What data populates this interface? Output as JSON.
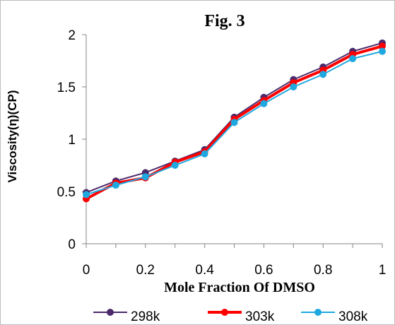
{
  "chart_data": {
    "type": "line",
    "title": "Fig. 3",
    "xlabel": "Mole Fraction Of DMSO",
    "ylabel": "Viscosity(η)(CP)",
    "xlim": [
      0,
      1
    ],
    "ylim": [
      0,
      2
    ],
    "x_ticks": [
      "0",
      "0.2",
      "0.4",
      "0.6",
      "0.8",
      "1"
    ],
    "y_ticks": [
      "0",
      "0.5",
      "1",
      "1.5",
      "2"
    ],
    "grid": false,
    "legend_position": "bottom",
    "x": [
      0,
      0.1,
      0.2,
      0.3,
      0.4,
      0.5,
      0.6,
      0.7,
      0.8,
      0.9,
      1.0
    ],
    "series": [
      {
        "name": "298k",
        "color": "#4b2a6b",
        "marker": "circle",
        "values": [
          0.49,
          0.6,
          0.68,
          0.79,
          0.9,
          1.21,
          1.4,
          1.57,
          1.69,
          1.84,
          1.92
        ]
      },
      {
        "name": "303k",
        "color": "#ff0000",
        "marker": "circle",
        "values": [
          0.43,
          0.58,
          0.63,
          0.78,
          0.88,
          1.19,
          1.37,
          1.54,
          1.66,
          1.81,
          1.89
        ]
      },
      {
        "name": "308k",
        "color": "#1fa8e0",
        "marker": "circle",
        "values": [
          0.47,
          0.56,
          0.64,
          0.75,
          0.86,
          1.16,
          1.34,
          1.5,
          1.62,
          1.77,
          1.84
        ]
      }
    ]
  }
}
